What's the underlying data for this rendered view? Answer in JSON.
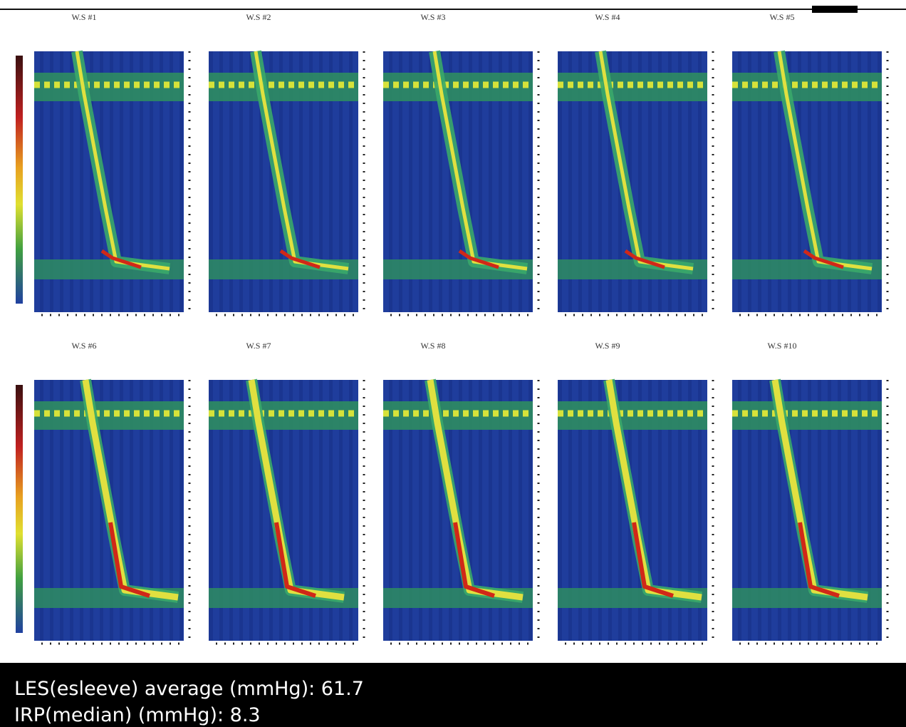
{
  "panels": [
    {
      "label": "W.S #1"
    },
    {
      "label": "W.S #2"
    },
    {
      "label": "W.S #3"
    },
    {
      "label": "W.S #4"
    },
    {
      "label": "W.S #5"
    },
    {
      "label": "W.S #6"
    },
    {
      "label": "W.S #7"
    },
    {
      "label": "W.S #8"
    },
    {
      "label": "W.S #9"
    },
    {
      "label": "W.S #10"
    }
  ],
  "footer": {
    "lines": [
      "LES(esleeve) average (mmHg): 61.7",
      "IRP(median) (mmHg): 8.3"
    ]
  }
}
